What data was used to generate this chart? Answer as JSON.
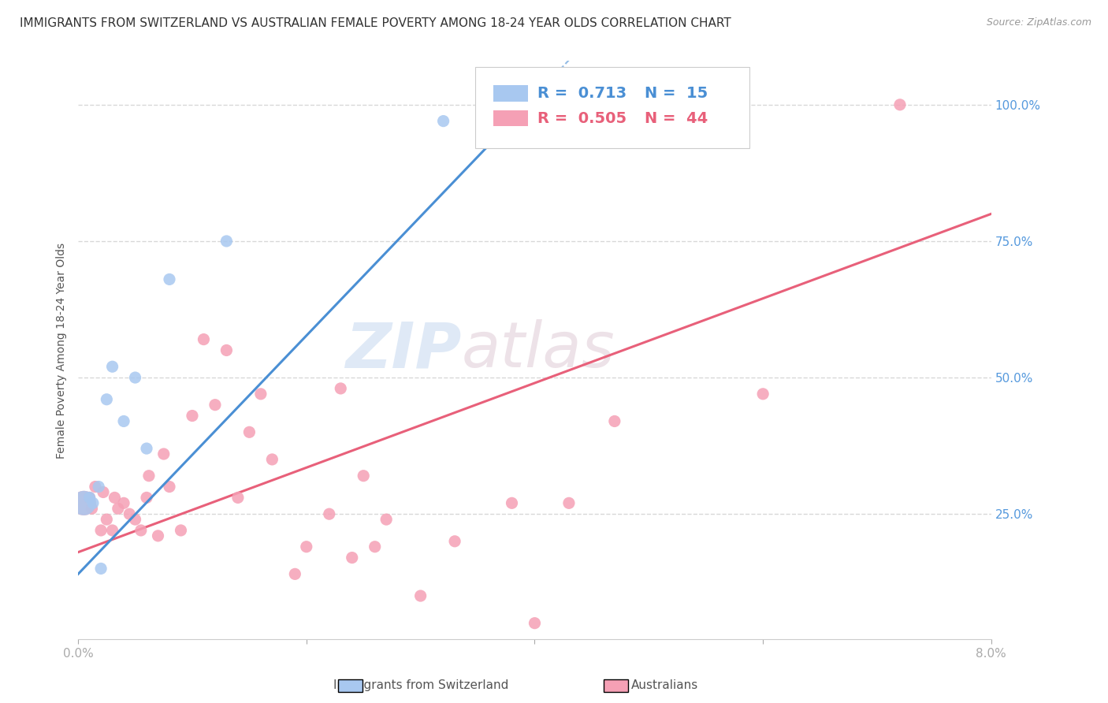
{
  "title": "IMMIGRANTS FROM SWITZERLAND VS AUSTRALIAN FEMALE POVERTY AMONG 18-24 YEAR OLDS CORRELATION CHART",
  "source": "Source: ZipAtlas.com",
  "ylabel": "Female Poverty Among 18-24 Year Olds",
  "ytick_labels": [
    "100.0%",
    "75.0%",
    "50.0%",
    "25.0%"
  ],
  "ytick_values": [
    1.0,
    0.75,
    0.5,
    0.25
  ],
  "xmin": 0.0,
  "xmax": 0.08,
  "ymin": 0.02,
  "ymax": 1.08,
  "legend_r_blue": "R =  0.713",
  "legend_n_blue": "N =  15",
  "legend_r_pink": "R =  0.505",
  "legend_n_pink": "N =  44",
  "blue_scatter_x": [
    0.0005,
    0.001,
    0.0013,
    0.0018,
    0.002,
    0.0025,
    0.003,
    0.004,
    0.005,
    0.006,
    0.008,
    0.013,
    0.032,
    0.038,
    0.042
  ],
  "blue_scatter_y": [
    0.27,
    0.28,
    0.27,
    0.3,
    0.15,
    0.46,
    0.52,
    0.42,
    0.5,
    0.37,
    0.68,
    0.75,
    0.97,
    0.97,
    0.97
  ],
  "blue_bubble_sizes": [
    500,
    120,
    120,
    120,
    120,
    120,
    120,
    120,
    120,
    120,
    120,
    120,
    120,
    120,
    120
  ],
  "pink_scatter_x": [
    0.0005,
    0.001,
    0.0012,
    0.0015,
    0.002,
    0.0022,
    0.0025,
    0.003,
    0.0032,
    0.0035,
    0.004,
    0.0045,
    0.005,
    0.0055,
    0.006,
    0.0062,
    0.007,
    0.0075,
    0.008,
    0.009,
    0.01,
    0.011,
    0.012,
    0.013,
    0.014,
    0.015,
    0.016,
    0.017,
    0.019,
    0.02,
    0.022,
    0.023,
    0.024,
    0.025,
    0.026,
    0.027,
    0.03,
    0.033,
    0.038,
    0.04,
    0.043,
    0.047,
    0.06,
    0.072
  ],
  "pink_scatter_y": [
    0.27,
    0.28,
    0.26,
    0.3,
    0.22,
    0.29,
    0.24,
    0.22,
    0.28,
    0.26,
    0.27,
    0.25,
    0.24,
    0.22,
    0.28,
    0.32,
    0.21,
    0.36,
    0.3,
    0.22,
    0.43,
    0.57,
    0.45,
    0.55,
    0.28,
    0.4,
    0.47,
    0.35,
    0.14,
    0.19,
    0.25,
    0.48,
    0.17,
    0.32,
    0.19,
    0.24,
    0.1,
    0.2,
    0.27,
    0.05,
    0.27,
    0.42,
    0.47,
    1.0
  ],
  "pink_bubble_sizes": [
    500,
    120,
    120,
    120,
    120,
    120,
    120,
    120,
    120,
    120,
    120,
    120,
    120,
    120,
    120,
    120,
    120,
    120,
    120,
    120,
    120,
    120,
    120,
    120,
    120,
    120,
    120,
    120,
    120,
    120,
    120,
    120,
    120,
    120,
    120,
    120,
    120,
    120,
    120,
    120,
    120,
    120,
    120,
    120
  ],
  "blue_line_x": [
    0.0,
    0.038,
    0.055
  ],
  "blue_line_y": [
    0.14,
    0.97,
    1.35
  ],
  "blue_line_solid_end": 0.038,
  "pink_line_x": [
    0.0,
    0.08
  ],
  "pink_line_y": [
    0.18,
    0.8
  ],
  "blue_color": "#a8c8f0",
  "pink_color": "#f5a0b5",
  "blue_line_color": "#4a8fd4",
  "pink_line_color": "#e8607a",
  "watermark_zip": "ZIP",
  "watermark_atlas": "atlas",
  "background_color": "#ffffff",
  "grid_color": "#d8d8d8",
  "title_fontsize": 11,
  "axis_label_fontsize": 10,
  "tick_fontsize": 11,
  "legend_fontsize": 14
}
